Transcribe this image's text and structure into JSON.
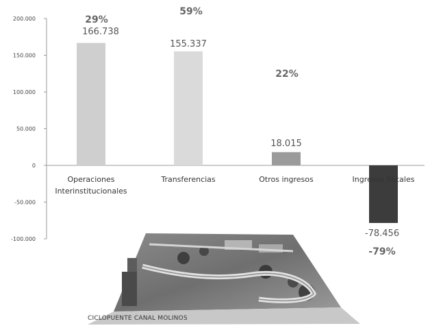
{
  "chart_data": {
    "type": "bar",
    "title": "",
    "xlabel": "",
    "ylabel": "",
    "ylim": [
      -100000,
      200000
    ],
    "yticks": [
      -100000,
      -50000,
      0,
      50000,
      100000,
      150000,
      200000
    ],
    "ytick_labels": [
      "-100.000",
      "-50.000",
      "0",
      "50.000",
      "100.000",
      "150.000",
      "200.000"
    ],
    "categories": [
      "Operaciones Interinstitucionales",
      "Transferencias",
      "Otros ingresos",
      "Ingresos fiscales"
    ],
    "category_lines": [
      [
        "Operaciones",
        "Interinstitucionales"
      ],
      [
        "Transferencias"
      ],
      [
        "Otros ingresos"
      ],
      [
        "Ingresos fiscales"
      ]
    ],
    "values": [
      166738,
      155337,
      18015,
      -78456
    ],
    "value_labels": [
      "166.738",
      "155.337",
      "18.015",
      "-78.456"
    ],
    "percent_labels": [
      "29%",
      "59%",
      "22%",
      "-79%"
    ],
    "bar_colors": [
      "#cfcfcf",
      "#dadada",
      "#9b9b9b",
      "#3c3c3c"
    ],
    "grid": false
  },
  "photo": {
    "caption": "CICLOPUENTE CANAL MOLINOS"
  }
}
